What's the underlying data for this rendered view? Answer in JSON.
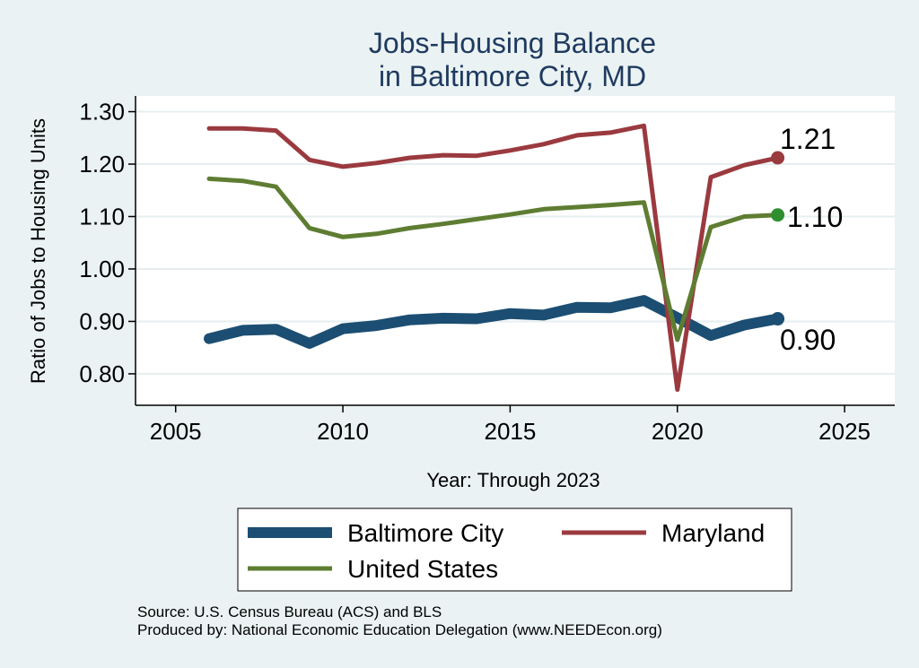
{
  "colors": {
    "background": "#eaf2f3",
    "plot_background": "#ffffff",
    "grid": "#e7eef0",
    "title": "#1f3a5f"
  },
  "chart_data": {
    "type": "line",
    "title_lines": [
      "Jobs-Housing Balance",
      "in Baltimore City, MD"
    ],
    "xlabel": "Year: Through 2023",
    "ylabel": "Ratio of Jobs to Housing Units",
    "xlim": [
      2003.8,
      2026.5
    ],
    "ylim": [
      0.74,
      1.33
    ],
    "xticks": [
      2005,
      2010,
      2015,
      2020,
      2025
    ],
    "xtick_labels": [
      "2005",
      "2010",
      "2015",
      "2020",
      "2025"
    ],
    "yticks": [
      0.8,
      0.9,
      1.0,
      1.1,
      1.2,
      1.3
    ],
    "ytick_labels": [
      "0.80",
      "0.90",
      "1.00",
      "1.10",
      "1.20",
      "1.30"
    ],
    "grid": true,
    "legend_position": "bottom",
    "x": [
      2006,
      2007,
      2008,
      2009,
      2010,
      2011,
      2012,
      2013,
      2014,
      2015,
      2016,
      2017,
      2018,
      2019,
      2020,
      2021,
      2022,
      2023
    ],
    "series": [
      {
        "name": "Baltimore City",
        "color": "#1b4e72",
        "width": 12,
        "values": [
          0.867,
          0.883,
          0.885,
          0.858,
          0.886,
          0.892,
          0.903,
          0.906,
          0.905,
          0.915,
          0.912,
          0.927,
          0.926,
          0.94,
          0.907,
          0.873,
          0.893,
          0.905
        ],
        "end_label": "0.90"
      },
      {
        "name": "Maryland",
        "color": "#9a3a3f",
        "width": 5,
        "values": [
          1.268,
          1.268,
          1.264,
          1.208,
          1.195,
          1.202,
          1.212,
          1.217,
          1.216,
          1.226,
          1.238,
          1.255,
          1.26,
          1.273,
          0.77,
          1.175,
          1.198,
          1.212
        ],
        "end_label": "1.21"
      },
      {
        "name": "United States",
        "color": "#5e7d32",
        "width": 5,
        "values": [
          1.172,
          1.168,
          1.157,
          1.078,
          1.061,
          1.067,
          1.078,
          1.086,
          1.095,
          1.104,
          1.114,
          1.118,
          1.122,
          1.127,
          0.865,
          1.08,
          1.1,
          1.103
        ],
        "end_label": "1.10"
      }
    ],
    "end_marker_colors": [
      "#1b4e72",
      "#9a3a3f",
      "#2f8f2f"
    ],
    "notes": [
      "Source: U.S. Census Bureau (ACS) and BLS",
      "Produced by: National Economic Education Delegation (www.NEEDEcon.org)"
    ]
  }
}
